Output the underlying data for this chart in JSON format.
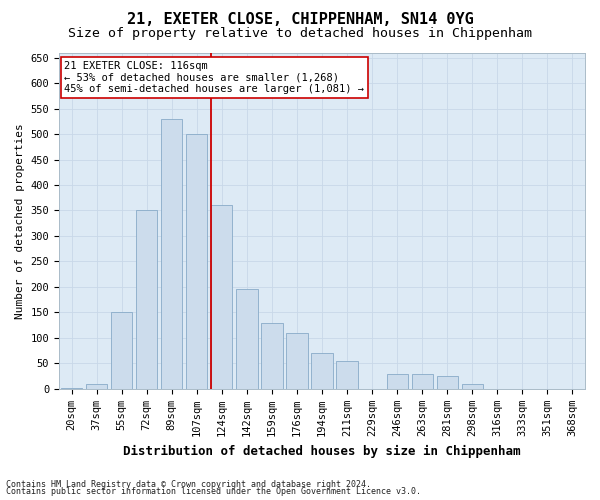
{
  "title": "21, EXETER CLOSE, CHIPPENHAM, SN14 0YG",
  "subtitle": "Size of property relative to detached houses in Chippenham",
  "xlabel": "Distribution of detached houses by size in Chippenham",
  "ylabel": "Number of detached properties",
  "footnote1": "Contains HM Land Registry data © Crown copyright and database right 2024.",
  "footnote2": "Contains public sector information licensed under the Open Government Licence v3.0.",
  "categories": [
    "20sqm",
    "37sqm",
    "55sqm",
    "72sqm",
    "89sqm",
    "107sqm",
    "124sqm",
    "142sqm",
    "159sqm",
    "176sqm",
    "194sqm",
    "211sqm",
    "229sqm",
    "246sqm",
    "263sqm",
    "281sqm",
    "298sqm",
    "316sqm",
    "333sqm",
    "351sqm",
    "368sqm"
  ],
  "values": [
    2,
    10,
    150,
    350,
    530,
    500,
    360,
    195,
    130,
    110,
    70,
    55,
    0,
    30,
    30,
    25,
    10,
    0,
    0,
    0,
    0
  ],
  "bar_color": "#ccdcec",
  "bar_edge_color": "#88aac8",
  "vline_color": "#cc0000",
  "vline_x": 5.57,
  "annotation_text": "21 EXETER CLOSE: 116sqm\n← 53% of detached houses are smaller (1,268)\n45% of semi-detached houses are larger (1,081) →",
  "annotation_box_facecolor": "white",
  "annotation_box_edgecolor": "#cc0000",
  "ylim_max": 660,
  "yticks": [
    0,
    50,
    100,
    150,
    200,
    250,
    300,
    350,
    400,
    450,
    500,
    550,
    600,
    650
  ],
  "grid_color": "#c8d8e8",
  "plot_bg_color": "#ddeaf5",
  "fig_bg_color": "#ffffff",
  "title_fontsize": 11,
  "subtitle_fontsize": 9.5,
  "ylabel_fontsize": 8,
  "xlabel_fontsize": 9,
  "tick_fontsize": 7.5,
  "annot_fontsize": 7.5,
  "footnote_fontsize": 6
}
